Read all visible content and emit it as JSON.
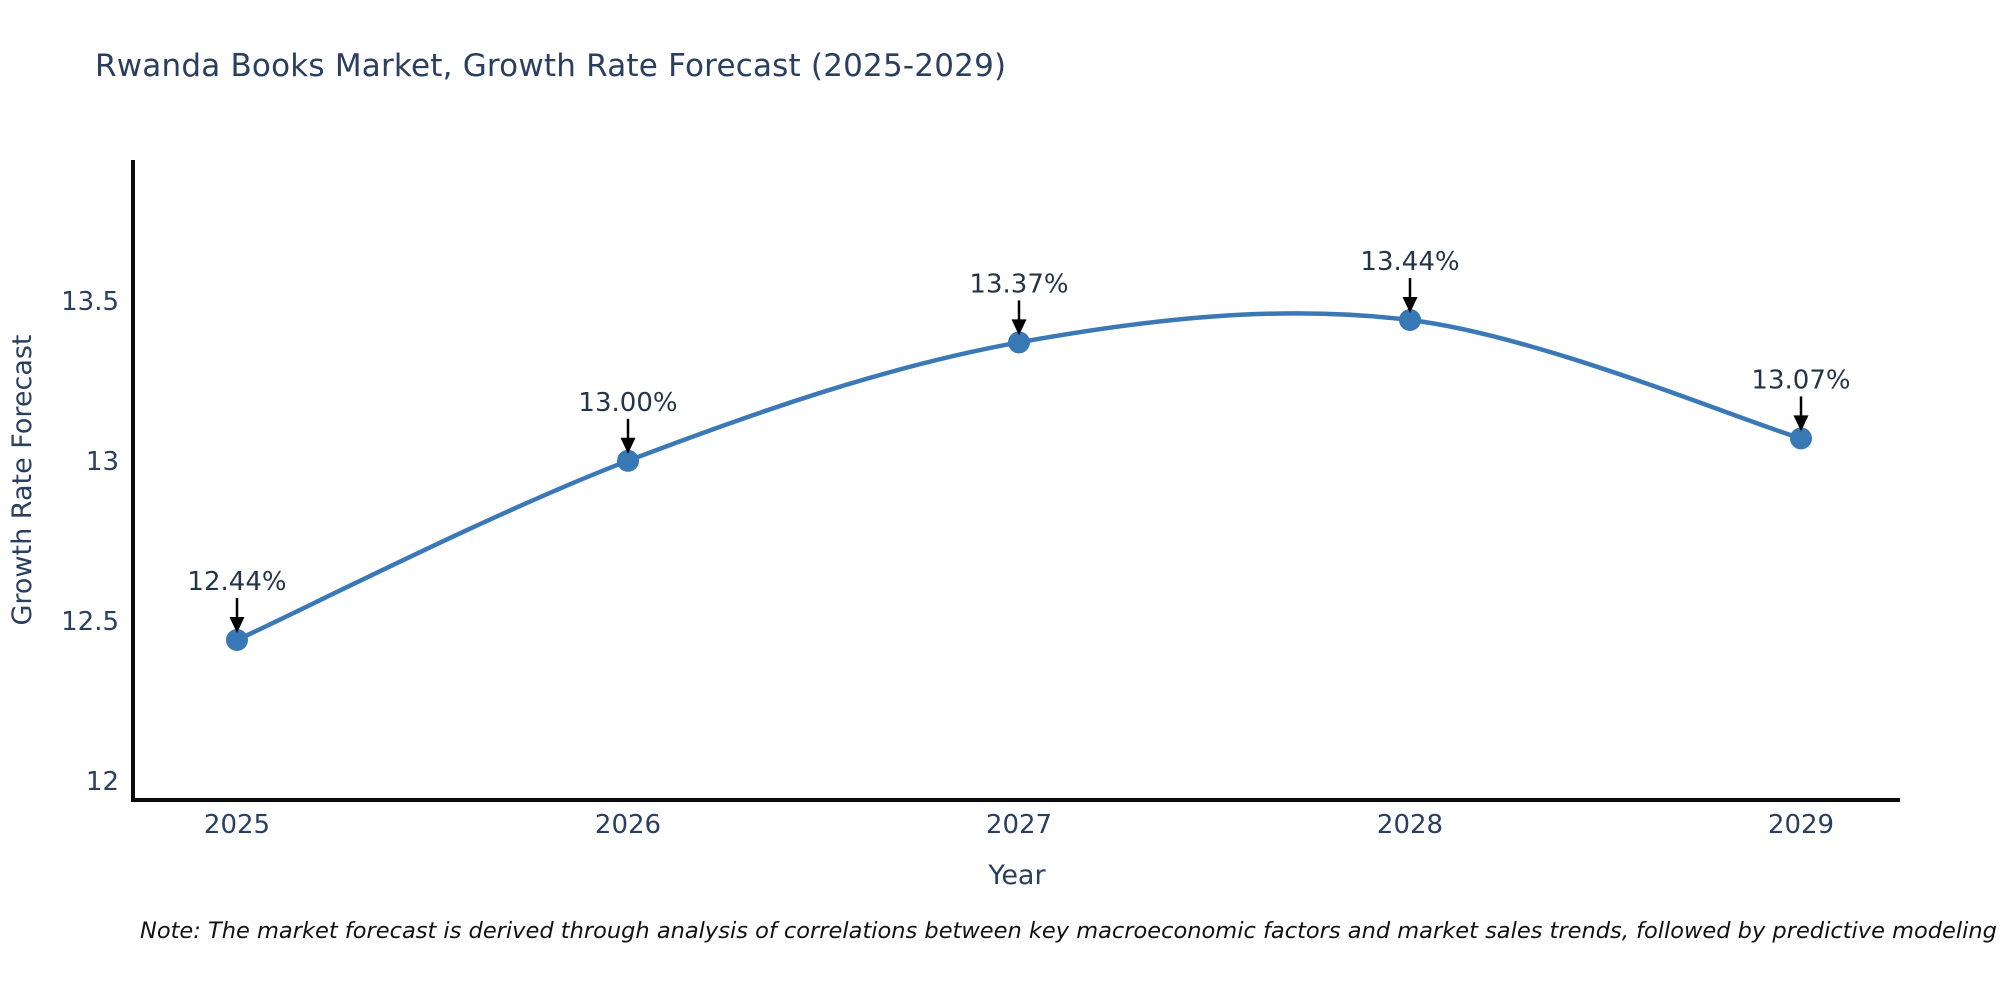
{
  "title": "Rwanda Books Market, Growth Rate Forecast (2025-2029)",
  "note": "Note: The market forecast is derived through analysis of correlations between key macroeconomic factors and market sales trends, followed by predictive modeling to project future sales.",
  "chart_data": {
    "type": "line",
    "x": [
      2025,
      2026,
      2027,
      2028,
      2029
    ],
    "x_tick_labels": [
      "2025",
      "2026",
      "2027",
      "2028",
      "2029"
    ],
    "series": [
      {
        "name": "Growth Rate Forecast",
        "values": [
          12.44,
          13.0,
          13.37,
          13.44,
          13.07
        ]
      }
    ],
    "point_labels": [
      "12.44%",
      "13.00%",
      "13.37%",
      "13.44%",
      "13.07%"
    ],
    "xlabel": "Year",
    "ylabel": "Growth Rate Forecast",
    "y_ticks": [
      12,
      12.5,
      13,
      13.5
    ],
    "y_tick_labels": [
      "12",
      "12.5",
      "13",
      "13.5"
    ],
    "ylim": [
      11.94,
      13.94
    ],
    "line_shape": "spline",
    "grid": false,
    "legend_position": "none",
    "colors": {
      "line": "#3a79b6",
      "marker": "#3878b4",
      "axis_line": "#0a0a0a",
      "tick_text": "#2a3f5f",
      "annotation_text": "#243447",
      "annotation_arrow": "#000000",
      "title_text": "#2a3f5f",
      "background": "#ffffff"
    }
  }
}
